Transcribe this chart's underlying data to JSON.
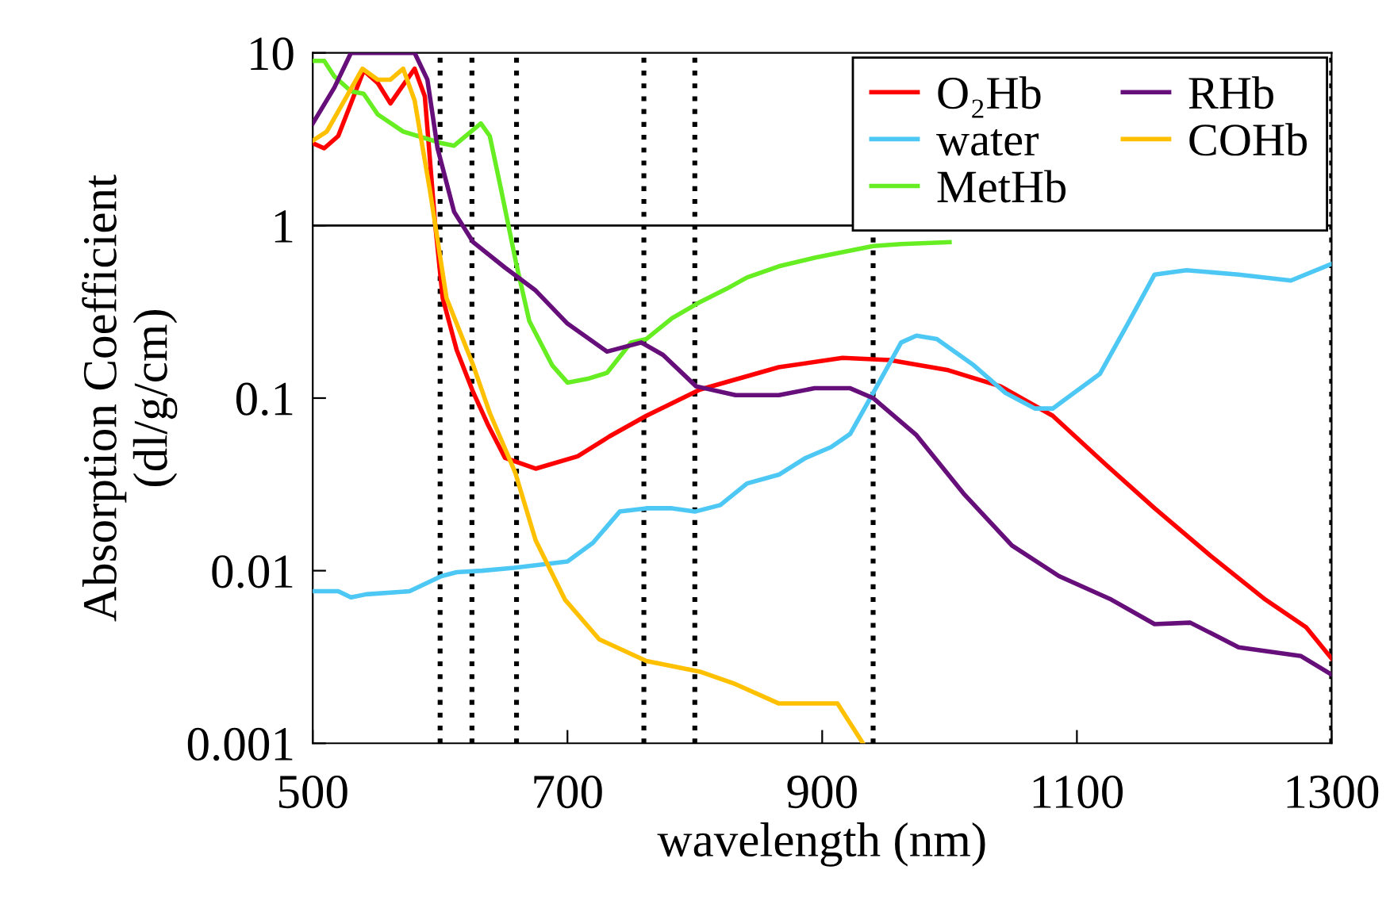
{
  "chart_data": {
    "type": "line",
    "xlabel": "wavelength (nm)",
    "ylabel": "Absorption Coefficient\n(dl/g/cm)",
    "xlim": [
      500,
      1300
    ],
    "xticks": [
      500,
      700,
      900,
      1100,
      1300
    ],
    "ylim": [
      0.001,
      10
    ],
    "yticks": [
      0.001,
      0.01,
      0.1,
      1,
      10
    ],
    "log": "y",
    "grid": false,
    "legend": "top right",
    "marker": "none",
    "line_style": "solid",
    "ref_lines": [
      {
        "axis": "y",
        "value": 1,
        "color": "#000000",
        "line_style": "solid"
      },
      {
        "axis": "x",
        "value": 600,
        "color": "#000000",
        "line_style": "dotted"
      },
      {
        "axis": "x",
        "value": 625,
        "color": "#000000",
        "line_style": "dotted"
      },
      {
        "axis": "x",
        "value": 660,
        "color": "#000000",
        "line_style": "dotted"
      },
      {
        "axis": "x",
        "value": 760,
        "color": "#000000",
        "line_style": "dotted"
      },
      {
        "axis": "x",
        "value": 800,
        "color": "#000000",
        "line_style": "dotted"
      },
      {
        "axis": "x",
        "value": 940,
        "color": "#000000",
        "line_style": "dotted"
      },
      {
        "axis": "x",
        "value": 1300,
        "color": "#000000",
        "line_style": "dotted"
      }
    ],
    "series": [
      {
        "name": "O₂Hb",
        "color": "#ff0000",
        "x": [
          500,
          509,
          520,
          540,
          551,
          561,
          580,
          588,
          596,
          602,
          613,
          626,
          638,
          651,
          675,
          708,
          733,
          762,
          804,
          866,
          916,
          953,
          999,
          1040,
          1081,
          1123,
          1161,
          1205,
          1248,
          1280,
          1300
        ],
        "values": [
          3.0,
          2.8,
          3.3,
          7.9,
          6.7,
          5.1,
          8.1,
          5.6,
          1.04,
          0.38,
          0.19,
          0.108,
          0.069,
          0.045,
          0.039,
          0.046,
          0.06,
          0.079,
          0.112,
          0.151,
          0.171,
          0.166,
          0.145,
          0.117,
          0.079,
          0.041,
          0.023,
          0.0122,
          0.0068,
          0.0047,
          0.0031
        ]
      },
      {
        "name": "water",
        "color": "#4dc8f5",
        "x": [
          500,
          520,
          530,
          542,
          576,
          601,
          613,
          633,
          658,
          700,
          720,
          741,
          762,
          782,
          800,
          820,
          841,
          866,
          887,
          907,
          922,
          940,
          962,
          974,
          990,
          1019,
          1044,
          1067,
          1081,
          1118,
          1140,
          1161,
          1186,
          1227,
          1268,
          1300
        ],
        "values": [
          0.0076,
          0.0076,
          0.007,
          0.0073,
          0.0076,
          0.0093,
          0.0098,
          0.01,
          0.0104,
          0.0113,
          0.0145,
          0.022,
          0.023,
          0.023,
          0.022,
          0.024,
          0.032,
          0.036,
          0.045,
          0.052,
          0.062,
          0.107,
          0.21,
          0.23,
          0.22,
          0.155,
          0.107,
          0.087,
          0.087,
          0.138,
          0.27,
          0.52,
          0.55,
          0.52,
          0.48,
          0.6
        ]
      },
      {
        "name": "MetHb",
        "color": "#66ee22",
        "x": [
          500,
          509,
          517,
          530,
          540,
          551,
          571,
          601,
          611,
          632,
          639,
          648,
          660,
          670,
          688,
          700,
          717,
          731,
          750,
          762,
          782,
          804,
          825,
          841,
          866,
          894,
          940,
          962,
          1000
        ],
        "values": [
          9.0,
          9.0,
          7.3,
          6.0,
          5.8,
          4.4,
          3.5,
          3.0,
          2.9,
          3.9,
          3.3,
          1.6,
          0.59,
          0.28,
          0.155,
          0.123,
          0.13,
          0.14,
          0.21,
          0.22,
          0.29,
          0.36,
          0.43,
          0.5,
          0.58,
          0.65,
          0.76,
          0.78,
          0.8
        ]
      },
      {
        "name": "RHb",
        "color": "#660e7a",
        "x": [
          500,
          517,
          530,
          580,
          590,
          598,
          611,
          626,
          651,
          675,
          700,
          731,
          758,
          775,
          801,
          832,
          866,
          894,
          922,
          940,
          974,
          1011,
          1049,
          1086,
          1127,
          1161,
          1189,
          1227,
          1276,
          1300
        ],
        "values": [
          3.9,
          6.3,
          10,
          10,
          7.0,
          2.8,
          1.2,
          0.8,
          0.57,
          0.42,
          0.27,
          0.186,
          0.21,
          0.178,
          0.117,
          0.104,
          0.104,
          0.114,
          0.114,
          0.1,
          0.061,
          0.028,
          0.014,
          0.0093,
          0.0068,
          0.0049,
          0.005,
          0.0036,
          0.0032,
          0.0025
        ]
      },
      {
        "name": "COHb",
        "color": "#ffc000",
        "x": [
          500,
          511,
          539,
          551,
          561,
          571,
          580,
          592,
          605,
          626,
          639,
          659,
          675,
          698,
          725,
          762,
          804,
          832,
          866,
          894,
          912,
          932
        ],
        "values": [
          3.1,
          3.5,
          8.1,
          7.0,
          7.0,
          8.1,
          5.3,
          1.6,
          0.38,
          0.155,
          0.082,
          0.037,
          0.015,
          0.0068,
          0.004,
          0.003,
          0.0026,
          0.0022,
          0.0017,
          0.0017,
          0.0017,
          0.001
        ]
      }
    ]
  }
}
